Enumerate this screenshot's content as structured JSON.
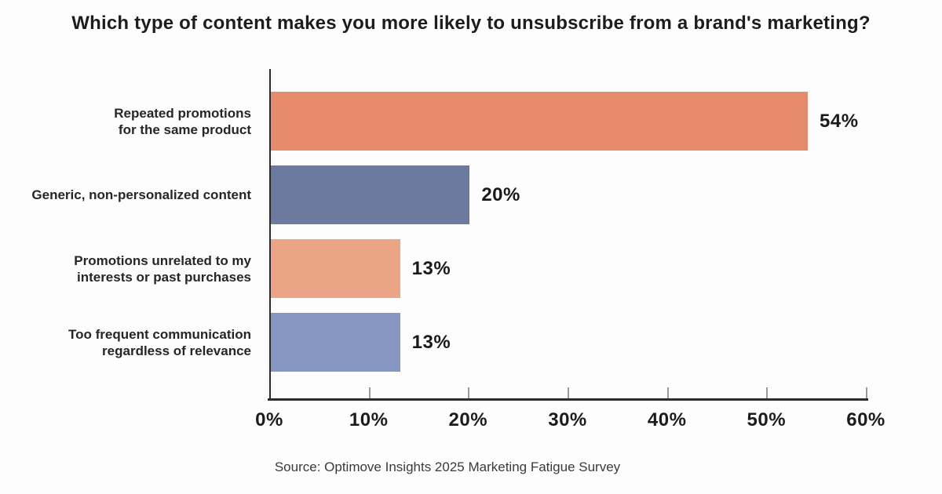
{
  "title": "Which type of content makes you more likely to unsubscribe from a brand's marketing?",
  "source": "Source: Optimove Insights 2025 Marketing Fatigue Survey",
  "chart_data": {
    "type": "bar",
    "orientation": "horizontal",
    "title": "Which type of content makes you more likely to unsubscribe from a brand's marketing?",
    "categories": [
      "Repeated promotions for the same product",
      "Generic, non-personalized content",
      "Promotions unrelated to my interests or past purchases",
      "Too frequent communication regardless of relevance"
    ],
    "category_label_lines": [
      [
        "Repeated promotions",
        "for the same product"
      ],
      [
        "Generic, non-personalized content"
      ],
      [
        "Promotions unrelated to my",
        "interests or past purchases"
      ],
      [
        "Too frequent communication",
        "regardless of relevance"
      ]
    ],
    "values": [
      54,
      20,
      13,
      13
    ],
    "value_labels": [
      "54%",
      "20%",
      "13%",
      "13%"
    ],
    "xlabel": "",
    "ylabel": "",
    "xlim": [
      0,
      60
    ],
    "x_ticks": [
      0,
      10,
      20,
      30,
      40,
      50,
      60
    ],
    "x_tick_labels": [
      "0%",
      "10%",
      "20%",
      "30%",
      "40%",
      "50%",
      "60%"
    ],
    "grid": false,
    "legend": false,
    "bar_colors": [
      "#E58A6A",
      "#6B7A9E",
      "#ECA487",
      "#8596C2"
    ],
    "axis_color": "#2b2b2b",
    "tick_mark_color": "#9a9a9a"
  }
}
